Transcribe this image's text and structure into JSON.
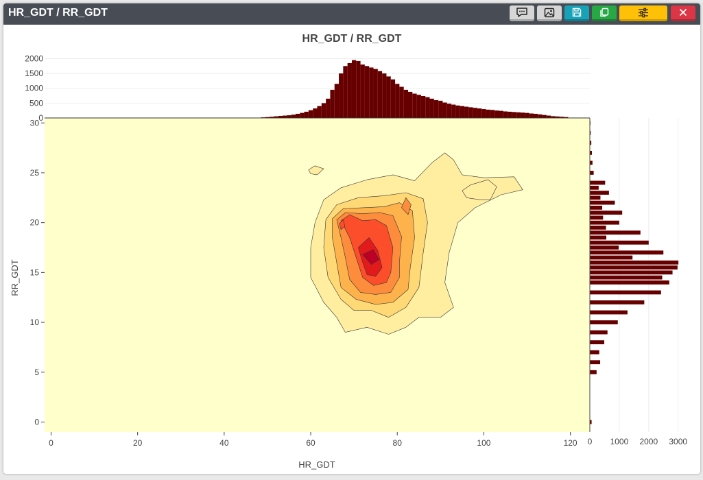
{
  "window": {
    "title": "HR_GDT / RR_GDT"
  },
  "toolbar": {
    "buttons": [
      {
        "name": "comment-button",
        "icon": "comment-icon",
        "color": "#d6d6d6"
      },
      {
        "name": "image-button",
        "icon": "image-icon",
        "color": "#d6d6d6"
      },
      {
        "name": "save-button",
        "icon": "save-icon",
        "color": "#17a2b8"
      },
      {
        "name": "copy-button",
        "icon": "copy-icon",
        "color": "#28a745"
      },
      {
        "name": "settings-button",
        "icon": "sliders-icon",
        "color": "#ffc107"
      },
      {
        "name": "close-button",
        "icon": "close-icon",
        "color": "#dc3545"
      }
    ]
  },
  "chart_data": {
    "type": "heatmap",
    "subtype": "2d-density-contour-with-marginal-histograms",
    "title": "HR_GDT / RR_GDT",
    "xlabel": "HR_GDT",
    "ylabel": "RR_GDT",
    "xlim": [
      -1.5,
      124.5
    ],
    "ylim": [
      -1,
      30.5
    ],
    "x_ticks": [
      0,
      20,
      40,
      60,
      80,
      100,
      120
    ],
    "y_ticks": [
      0,
      5,
      10,
      15,
      20,
      25,
      30
    ],
    "grid": false,
    "colors": {
      "background": "#ffffcc",
      "levels": [
        "#ffeda0",
        "#fed976",
        "#feb24c",
        "#fd8d3c",
        "#fc4e2a",
        "#e31a1c",
        "#bd0026",
        "#800026"
      ],
      "histogram": "#660000",
      "contour_line": "#333333"
    },
    "contours": [
      {
        "level": 1,
        "points": [
          [
            61,
            20
          ],
          [
            63,
            22.3
          ],
          [
            67,
            23.5
          ],
          [
            73,
            24.3
          ],
          [
            79,
            24.8
          ],
          [
            84,
            24.2
          ],
          [
            88,
            26
          ],
          [
            91,
            27
          ],
          [
            93,
            26.3
          ],
          [
            95,
            24.8
          ],
          [
            100,
            24.5
          ],
          [
            107,
            24.6
          ],
          [
            109,
            23.3
          ],
          [
            104,
            22.8
          ],
          [
            98,
            21.5
          ],
          [
            94,
            20
          ],
          [
            92,
            17
          ],
          [
            91,
            14
          ],
          [
            93,
            11.5
          ],
          [
            90,
            10.5
          ],
          [
            85,
            10.5
          ],
          [
            82,
            9.5
          ],
          [
            78,
            8.8
          ],
          [
            73,
            9.5
          ],
          [
            68,
            9
          ],
          [
            66,
            10.5
          ],
          [
            63,
            12
          ],
          [
            60,
            14.5
          ],
          [
            60,
            17.5
          ]
        ]
      },
      {
        "level": 1,
        "points": [
          [
            95,
            23.2
          ],
          [
            97,
            23.8
          ],
          [
            101,
            24.3
          ],
          [
            103,
            23.6
          ],
          [
            101.5,
            22.3
          ],
          [
            99,
            22.3
          ],
          [
            96,
            22.5
          ]
        ]
      },
      {
        "level": 1,
        "points": [
          [
            59.5,
            25.3
          ],
          [
            61,
            25.7
          ],
          [
            63,
            25.4
          ],
          [
            61.5,
            24.8
          ],
          [
            60,
            24.9
          ]
        ]
      },
      {
        "level": 2,
        "points": [
          [
            63.5,
            20.3
          ],
          [
            66,
            21.8
          ],
          [
            71,
            22.5
          ],
          [
            77,
            22.7
          ],
          [
            82,
            23
          ],
          [
            86,
            22.4
          ],
          [
            87,
            20
          ],
          [
            86,
            17
          ],
          [
            85,
            13.5
          ],
          [
            82,
            11.5
          ],
          [
            78,
            10.5
          ],
          [
            74,
            11.2
          ],
          [
            70,
            11.2
          ],
          [
            67,
            12.3
          ],
          [
            64,
            14.5
          ],
          [
            63,
            17.5
          ]
        ]
      },
      {
        "level": 3,
        "points": [
          [
            65,
            20.4
          ],
          [
            67.5,
            21.4
          ],
          [
            72,
            21.5
          ],
          [
            77,
            21.6
          ],
          [
            80.5,
            22
          ],
          [
            83.5,
            21.2
          ],
          [
            84,
            18.5
          ],
          [
            83,
            15.5
          ],
          [
            82.5,
            13.3
          ],
          [
            79,
            12
          ],
          [
            75,
            11.8
          ],
          [
            70.5,
            12.3
          ],
          [
            67,
            13.5
          ],
          [
            66,
            16
          ],
          [
            65,
            18.5
          ]
        ]
      },
      {
        "level": 4,
        "points": [
          [
            66,
            20.3
          ],
          [
            68,
            21
          ],
          [
            72,
            20.9
          ],
          [
            76,
            21
          ],
          [
            79,
            20.7
          ],
          [
            81,
            18.6
          ],
          [
            80.5,
            16
          ],
          [
            80.5,
            14.5
          ],
          [
            78.5,
            13
          ],
          [
            75,
            12.8
          ],
          [
            71.5,
            13
          ],
          [
            69,
            14.3
          ],
          [
            68,
            16.5
          ],
          [
            67,
            18.5
          ]
        ]
      },
      {
        "level": 4,
        "points": [
          [
            81,
            21.5
          ],
          [
            82,
            22.5
          ],
          [
            83.2,
            21.8
          ],
          [
            82.5,
            20.8
          ]
        ]
      },
      {
        "level": 5,
        "points": [
          [
            67,
            20.2
          ],
          [
            69,
            20.8
          ],
          [
            72,
            20.2
          ],
          [
            75,
            20.3
          ],
          [
            77.5,
            19.7
          ],
          [
            79,
            17.5
          ],
          [
            78.5,
            15
          ],
          [
            77.5,
            14
          ],
          [
            74.5,
            13.7
          ],
          [
            72,
            14.5
          ],
          [
            70.5,
            16.5
          ],
          [
            69,
            18.5
          ]
        ]
      },
      {
        "level": 5,
        "points": [
          [
            66.6,
            19.9
          ],
          [
            67.5,
            20.3
          ],
          [
            67.9,
            19.6
          ],
          [
            67,
            19.3
          ]
        ]
      },
      {
        "level": 6,
        "points": [
          [
            71,
            17.5
          ],
          [
            73.5,
            18.5
          ],
          [
            75.5,
            17.2
          ],
          [
            76.5,
            15.5
          ],
          [
            75,
            14.6
          ],
          [
            73,
            14.8
          ],
          [
            72,
            16
          ]
        ]
      },
      {
        "level": 7,
        "points": [
          [
            72,
            16.8
          ],
          [
            74.5,
            17.3
          ],
          [
            75.8,
            16.3
          ],
          [
            74,
            15.8
          ]
        ]
      }
    ],
    "marginal_x": {
      "orientation": "vertical",
      "axis_ticks": [
        0,
        500,
        1000,
        1500,
        2000
      ],
      "ylim": [
        0,
        2150
      ],
      "bin_width": 1,
      "bins_x": [
        48,
        49,
        50,
        51,
        52,
        53,
        54,
        55,
        56,
        57,
        58,
        59,
        60,
        61,
        62,
        63,
        64,
        65,
        66,
        67,
        68,
        69,
        70,
        71,
        72,
        73,
        74,
        75,
        76,
        77,
        78,
        79,
        80,
        81,
        82,
        83,
        84,
        85,
        86,
        87,
        88,
        89,
        90,
        91,
        92,
        93,
        94,
        95,
        96,
        97,
        98,
        99,
        100,
        101,
        102,
        103,
        104,
        105,
        106,
        107,
        108,
        109,
        110,
        111,
        112,
        113,
        114,
        115,
        116,
        117,
        118,
        119
      ],
      "counts": [
        10,
        20,
        30,
        40,
        55,
        70,
        80,
        90,
        110,
        140,
        170,
        210,
        260,
        320,
        400,
        500,
        650,
        950,
        1150,
        1500,
        1750,
        1850,
        1950,
        1920,
        1800,
        1750,
        1700,
        1650,
        1580,
        1500,
        1400,
        1300,
        1150,
        1050,
        950,
        880,
        820,
        780,
        740,
        700,
        650,
        600,
        580,
        520,
        480,
        450,
        420,
        400,
        380,
        360,
        340,
        320,
        300,
        280,
        270,
        250,
        240,
        220,
        210,
        200,
        190,
        180,
        170,
        150,
        140,
        120,
        100,
        80,
        60,
        50,
        40,
        30
      ]
    },
    "marginal_y": {
      "orientation": "horizontal",
      "axis_ticks": [
        0,
        1000,
        2000,
        3000
      ],
      "xlim": [
        0,
        3100
      ],
      "bin_height": 0.4,
      "bins_y": [
        0,
        5,
        6,
        7,
        8,
        9,
        10,
        11,
        12,
        13,
        14,
        14.5,
        15,
        15.5,
        16,
        16.5,
        17,
        17.5,
        18,
        18.5,
        19,
        19.5,
        20,
        20.5,
        21,
        21.5,
        22,
        22.5,
        23,
        23.5,
        24,
        25,
        26,
        27,
        28,
        29,
        30
      ],
      "counts": [
        60,
        230,
        350,
        320,
        490,
        600,
        950,
        1280,
        1850,
        2420,
        2700,
        2460,
        2810,
        2980,
        3010,
        1450,
        2500,
        980,
        2000,
        560,
        1720,
        550,
        1000,
        450,
        1100,
        420,
        850,
        360,
        650,
        300,
        520,
        130,
        90,
        70,
        50,
        30,
        20
      ]
    }
  }
}
